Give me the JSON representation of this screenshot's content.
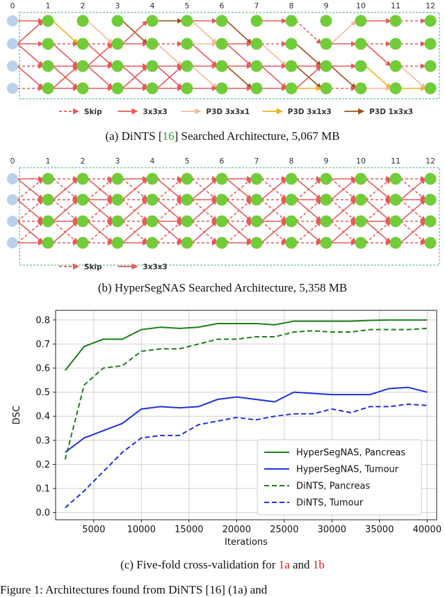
{
  "figure_a": {
    "stage_labels": [
      "0",
      "1",
      "2",
      "3",
      "4",
      "5",
      "6",
      "7",
      "8",
      "9",
      "10",
      "11",
      "12"
    ],
    "legend": [
      {
        "label": "Skip",
        "color": "#e85a5a",
        "style": "dashed"
      },
      {
        "label": "3x3x3",
        "color": "#e85a5a",
        "style": "solid"
      },
      {
        "label": "P3D 3x3x1",
        "color": "#f5b99a",
        "style": "solid"
      },
      {
        "label": "P3D 3x1x3",
        "color": "#f2b01e",
        "style": "solid"
      },
      {
        "label": "P3D 1x3x3",
        "color": "#a0501a",
        "style": "solid"
      }
    ],
    "caption_prefix": "(a) DiNTS [",
    "caption_ref": "16",
    "caption_suffix": "] Searched Architecture, 5,067 MB"
  },
  "figure_b": {
    "stage_labels": [
      "0",
      "1",
      "2",
      "3",
      "4",
      "5",
      "6",
      "7",
      "8",
      "9",
      "10",
      "11",
      "12"
    ],
    "legend": [
      {
        "label": "Skip",
        "color": "#e85a5a",
        "style": "dashed"
      },
      {
        "label": "3x3x3",
        "color": "#e85a5a",
        "style": "solid"
      }
    ],
    "caption": "(b) HyperSegNAS Searched Architecture, 5,358 MB"
  },
  "figure_c": {
    "caption_prefix": "(c) Five-fold cross-validation for ",
    "caption_ref1": "1a",
    "caption_mid": " and ",
    "caption_ref2": "1b"
  },
  "chart_data": {
    "type": "line",
    "xlabel": "Iterations",
    "ylabel": "DSC",
    "xlim": [
      1000,
      41000
    ],
    "ylim": [
      -0.03,
      0.84
    ],
    "xticks": [
      5000,
      10000,
      15000,
      20000,
      25000,
      30000,
      35000,
      40000
    ],
    "yticks": [
      0.0,
      0.1,
      0.2,
      0.3,
      0.4,
      0.5,
      0.6,
      0.7,
      0.8
    ],
    "grid": true,
    "legend_position": "lower-right",
    "x": [
      2000,
      4000,
      6000,
      8000,
      10000,
      12000,
      14000,
      16000,
      18000,
      20000,
      22000,
      24000,
      26000,
      28000,
      30000,
      32000,
      34000,
      36000,
      38000,
      40000
    ],
    "series": [
      {
        "name": "HyperSegNAS, Pancreas",
        "color": "#1a7f1a",
        "style": "solid",
        "values": [
          0.59,
          0.69,
          0.72,
          0.72,
          0.76,
          0.77,
          0.765,
          0.77,
          0.785,
          0.785,
          0.785,
          0.78,
          0.795,
          0.795,
          0.795,
          0.795,
          0.798,
          0.8,
          0.8,
          0.8
        ]
      },
      {
        "name": "HyperSegNAS, Tumour",
        "color": "#1f2fe0",
        "style": "solid",
        "values": [
          0.25,
          0.31,
          0.34,
          0.37,
          0.43,
          0.44,
          0.435,
          0.44,
          0.47,
          0.48,
          0.47,
          0.46,
          0.5,
          0.495,
          0.49,
          0.49,
          0.49,
          0.515,
          0.52,
          0.5
        ]
      },
      {
        "name": "DiNTS, Pancreas",
        "color": "#1a7f1a",
        "style": "dashed",
        "values": [
          0.22,
          0.53,
          0.6,
          0.61,
          0.67,
          0.68,
          0.68,
          0.7,
          0.72,
          0.72,
          0.73,
          0.73,
          0.75,
          0.755,
          0.75,
          0.75,
          0.76,
          0.76,
          0.76,
          0.765
        ]
      },
      {
        "name": "DiNTS, Tumour",
        "color": "#1f2fe0",
        "style": "dashed",
        "values": [
          0.02,
          0.09,
          0.17,
          0.25,
          0.31,
          0.32,
          0.32,
          0.365,
          0.38,
          0.395,
          0.385,
          0.4,
          0.41,
          0.41,
          0.43,
          0.415,
          0.44,
          0.44,
          0.45,
          0.445
        ]
      }
    ]
  },
  "footer_text": "Figure 1:   Architectures found from DiNTS [16] (1a) and"
}
